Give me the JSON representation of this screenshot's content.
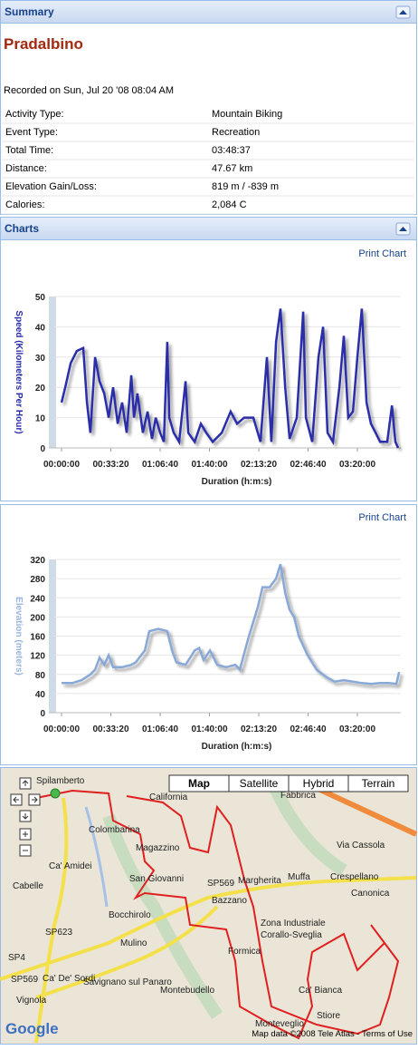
{
  "summary": {
    "header": "Summary",
    "title": "Pradalbino",
    "recorded": "Recorded on Sun, Jul 20 '08 08:04 AM",
    "rows": [
      [
        "Activity Type:",
        "Mountain Biking"
      ],
      [
        "Event Type:",
        "Recreation"
      ],
      [
        "Total Time:",
        "03:48:37"
      ],
      [
        "Distance:",
        "47.67 km"
      ],
      [
        "Elevation Gain/Loss:",
        "819 m / -839 m"
      ],
      [
        "Calories:",
        "2,084 C"
      ]
    ]
  },
  "charts_panel": {
    "header": "Charts",
    "print_links": [
      "Print Chart",
      "Print Chart"
    ]
  },
  "chart_data": [
    {
      "type": "line",
      "y_label": "Speed (Kilometers Per Hour)",
      "x_label": "Duration (h:m:s)",
      "x": [
        0,
        150,
        370,
        620,
        880,
        1030,
        1170,
        1360,
        1540,
        1730,
        1910,
        2090,
        2280,
        2460,
        2640,
        2830,
        2940,
        3080,
        3300,
        3490,
        3670,
        3820,
        4000,
        4150,
        4290,
        4370,
        4550,
        4770,
        5030,
        5140,
        5400,
        5650,
        5870,
        6130,
        6500,
        6860,
        7120,
        7410,
        7780,
        8070,
        8330,
        8510,
        8700,
        8880,
        9070,
        9250,
        9540,
        9800,
        9910,
        10170,
        10420,
        10610,
        10790,
        11010,
        11270,
        11450,
        11630,
        11820,
        12000,
        12180,
        12370,
        12550,
        12740,
        12920,
        13210,
        13400,
        13540,
        13650
      ],
      "series": [
        {
          "color": "#2b2ea8",
          "values": [
            15,
            20,
            28,
            32,
            33,
            15,
            5,
            30,
            22,
            18,
            10,
            20,
            8,
            15,
            5,
            24,
            10,
            18,
            5,
            12,
            3,
            10,
            5,
            2,
            35,
            10,
            5,
            2,
            22,
            5,
            2,
            8,
            5,
            2,
            5,
            12,
            8,
            10,
            10,
            2,
            30,
            2,
            35,
            46,
            20,
            3,
            10,
            45,
            10,
            2,
            30,
            40,
            5,
            2,
            20,
            37,
            10,
            12,
            30,
            46,
            15,
            8,
            5,
            2,
            2,
            14,
            2,
            0
          ]
        }
      ],
      "xlim": [
        -294,
        13761
      ],
      "ylim": [
        0,
        50
      ],
      "xticks": [
        {
          "value": 0,
          "label": "00:00:00"
        },
        {
          "value": 2000,
          "label": "00:33:20"
        },
        {
          "value": 4000,
          "label": "01:06:40"
        },
        {
          "value": 6000,
          "label": "01:40:00"
        },
        {
          "value": 8000,
          "label": "02:13:20"
        },
        {
          "value": 10000,
          "label": "02:46:40"
        },
        {
          "value": 12000,
          "label": "03:20:00"
        }
      ],
      "yticks": [
        0,
        10,
        20,
        30,
        40,
        50
      ],
      "grid": true,
      "y_label_color": "#2b2ea8"
    },
    {
      "type": "line",
      "y_label": "Elevation (meters)",
      "x_label": "Duration (h:m:s)",
      "x": [
        0,
        440,
        810,
        1170,
        1360,
        1540,
        1730,
        1910,
        2090,
        2460,
        2830,
        3010,
        3380,
        3560,
        3930,
        4290,
        4480,
        4660,
        5030,
        5400,
        5580,
        5760,
        6020,
        6310,
        6680,
        7050,
        7230,
        7600,
        7960,
        8150,
        8440,
        8700,
        8880,
        9070,
        9250,
        9430,
        9620,
        9980,
        10350,
        10720,
        11080,
        11450,
        11820,
        12180,
        12550,
        12920,
        13290,
        13580,
        13690
      ],
      "series": [
        {
          "color": "#88a8d8",
          "values": [
            62,
            62,
            68,
            80,
            90,
            115,
            100,
            120,
            95,
            95,
            100,
            105,
            130,
            170,
            175,
            170,
            130,
            105,
            100,
            130,
            135,
            110,
            130,
            100,
            95,
            100,
            90,
            160,
            220,
            262,
            262,
            280,
            310,
            250,
            215,
            200,
            160,
            120,
            90,
            75,
            65,
            68,
            65,
            62,
            60,
            62,
            62,
            60,
            85
          ]
        }
      ],
      "xlim": [
        -294,
        13761
      ],
      "ylim": [
        0,
        320
      ],
      "xticks": [
        {
          "value": 0,
          "label": "00:00:00"
        },
        {
          "value": 2000,
          "label": "00:33:20"
        },
        {
          "value": 4000,
          "label": "01:06:40"
        },
        {
          "value": 6000,
          "label": "01:40:00"
        },
        {
          "value": 8000,
          "label": "02:13:20"
        },
        {
          "value": 10000,
          "label": "02:46:40"
        },
        {
          "value": 12000,
          "label": "03:20:00"
        }
      ],
      "yticks": [
        0,
        40,
        80,
        120,
        160,
        200,
        240,
        280,
        320
      ],
      "grid": true,
      "y_label_color": "#9ab4e0"
    }
  ],
  "map": {
    "types": [
      "Map",
      "Satellite",
      "Hybrid",
      "Terrain"
    ],
    "labels": [
      "Spilamberto",
      "California",
      "Fabbrica",
      "Colombarina",
      "Magazzino",
      "Via Cassola",
      "Ca' Amidei",
      "Cabelle",
      "San Giovanni",
      "SP569",
      "Margherita",
      "Muffa",
      "Crespellano",
      "Canonica",
      "Bazzano",
      "Bocchirolo",
      "SP623",
      "Zona Industriale",
      "Corallo-Sveglia",
      "Mulino",
      "Formica",
      "SP4",
      "SP569",
      "Ca' De' Sordi",
      "Savignano sul Panaro",
      "Montebudello",
      "Ca' Bianca",
      "Vignola",
      "Monteveglio",
      "Stiore"
    ],
    "credit": "Map data ©2008 Tele Atlas - Terms of Use",
    "logo": "Google"
  }
}
